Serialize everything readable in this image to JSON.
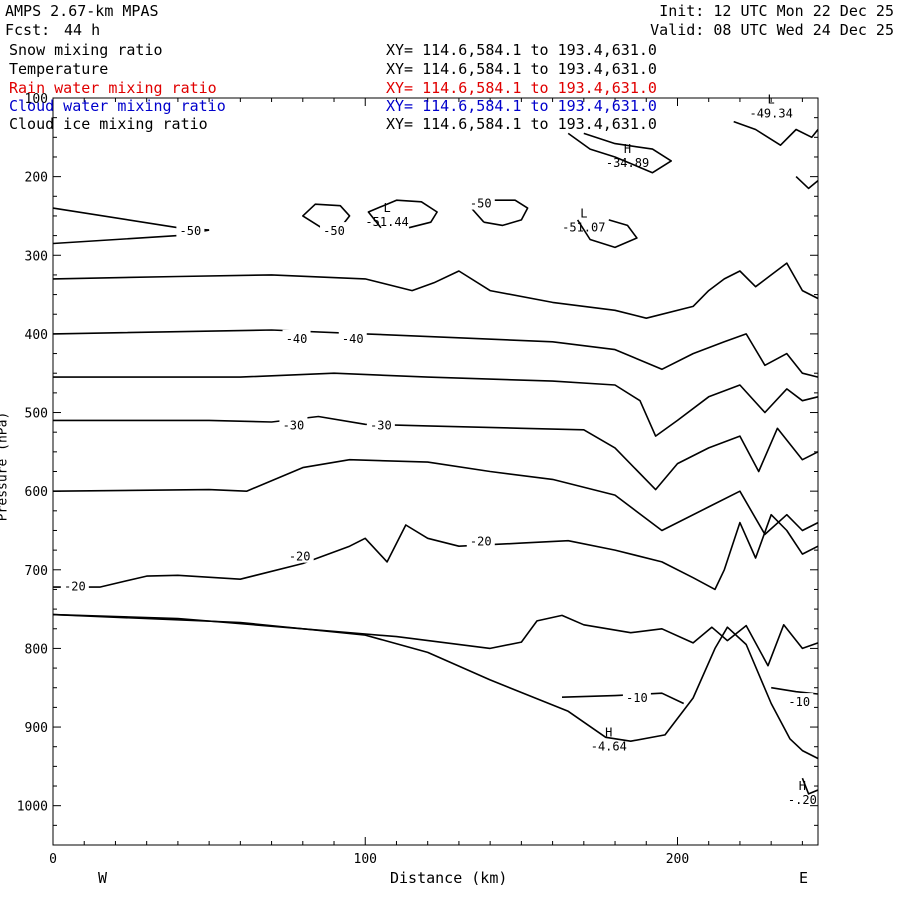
{
  "header": {
    "model": "AMPS 2.67-km MPAS",
    "fcst_label": "Fcst:",
    "fcst_value": "44 h",
    "init": "Init: 12 UTC Mon 22 Dec 25",
    "valid": "Valid: 08 UTC Wed 24 Dec 25"
  },
  "fields": [
    {
      "name": "Snow mixing ratio",
      "xy": "XY= 114.6,584.1 to 193.4,631.0",
      "color": "#000000"
    },
    {
      "name": "Temperature",
      "xy": "XY= 114.6,584.1 to 193.4,631.0",
      "color": "#000000"
    },
    {
      "name": "Rain water mixing ratio",
      "xy": "XY= 114.6,584.1 to 193.4,631.0",
      "color": "#e00000"
    },
    {
      "name": "Cloud water mixing ratio",
      "xy": "XY= 114.6,584.1 to 193.4,631.0",
      "color": "#0000cc"
    },
    {
      "name": "Cloud ice mixing ratio",
      "xy": "XY= 114.6,584.1 to 193.4,631.0",
      "color": "#000000"
    }
  ],
  "chart_data": {
    "type": "line",
    "title": "AMPS 2.67-km MPAS",
    "xlabel": "Distance (km)",
    "ylabel": "Pressure (hPa)",
    "x_end_labels": {
      "left": "W",
      "right": "E"
    },
    "xlim": [
      0,
      245
    ],
    "ylim": [
      1050,
      100
    ],
    "y_reversed": true,
    "xticks": [
      0,
      100,
      200
    ],
    "yticks": [
      100,
      200,
      300,
      400,
      500,
      600,
      700,
      800,
      900,
      1000
    ],
    "line_color": "#000000",
    "series": [
      {
        "points": [
          [
            0,
            240
          ],
          [
            40,
            265
          ],
          [
            50,
            268
          ]
        ]
      },
      {
        "points": [
          [
            0,
            285
          ],
          [
            40,
            275
          ],
          [
            50,
            268
          ]
        ]
      },
      {
        "points": [
          [
            0,
            330
          ],
          [
            40,
            327
          ],
          [
            70,
            325
          ],
          [
            100,
            330
          ],
          [
            115,
            345
          ],
          [
            122,
            335
          ],
          [
            130,
            320
          ],
          [
            140,
            345
          ],
          [
            160,
            360
          ],
          [
            180,
            370
          ],
          [
            190,
            380
          ],
          [
            205,
            365
          ],
          [
            210,
            345
          ],
          [
            215,
            330
          ],
          [
            220,
            320
          ],
          [
            225,
            340
          ],
          [
            230,
            325
          ],
          [
            235,
            310
          ],
          [
            240,
            345
          ],
          [
            245,
            355
          ]
        ]
      },
      {
        "points": [
          [
            0,
            400
          ],
          [
            70,
            395
          ],
          [
            100,
            400
          ],
          [
            130,
            405
          ],
          [
            160,
            410
          ],
          [
            180,
            420
          ],
          [
            195,
            445
          ],
          [
            205,
            425
          ],
          [
            215,
            410
          ],
          [
            222,
            400
          ],
          [
            228,
            440
          ],
          [
            235,
            425
          ],
          [
            240,
            450
          ],
          [
            245,
            455
          ]
        ]
      },
      {
        "points": [
          [
            0,
            455
          ],
          [
            60,
            455
          ],
          [
            90,
            450
          ],
          [
            120,
            455
          ],
          [
            160,
            460
          ],
          [
            180,
            465
          ],
          [
            188,
            485
          ],
          [
            193,
            530
          ],
          [
            200,
            510
          ],
          [
            210,
            480
          ],
          [
            220,
            465
          ],
          [
            228,
            500
          ],
          [
            235,
            470
          ],
          [
            240,
            485
          ],
          [
            245,
            480
          ]
        ]
      },
      {
        "points": [
          [
            0,
            510
          ],
          [
            50,
            510
          ],
          [
            70,
            512
          ],
          [
            85,
            505
          ],
          [
            100,
            515
          ],
          [
            120,
            517
          ],
          [
            150,
            520
          ],
          [
            170,
            522
          ],
          [
            180,
            545
          ],
          [
            193,
            598
          ],
          [
            200,
            565
          ],
          [
            210,
            545
          ],
          [
            220,
            530
          ],
          [
            226,
            575
          ],
          [
            232,
            520
          ],
          [
            240,
            560
          ],
          [
            245,
            550
          ]
        ]
      },
      {
        "points": [
          [
            0,
            600
          ],
          [
            50,
            598
          ],
          [
            62,
            600
          ],
          [
            80,
            570
          ],
          [
            95,
            560
          ],
          [
            120,
            563
          ],
          [
            140,
            575
          ],
          [
            160,
            585
          ],
          [
            180,
            605
          ],
          [
            195,
            650
          ],
          [
            210,
            620
          ],
          [
            220,
            600
          ],
          [
            228,
            655
          ],
          [
            235,
            630
          ],
          [
            240,
            650
          ],
          [
            245,
            640
          ]
        ]
      },
      {
        "points": [
          [
            0,
            722
          ],
          [
            15,
            722
          ],
          [
            30,
            708
          ],
          [
            40,
            707
          ],
          [
            60,
            712
          ],
          [
            80,
            692
          ],
          [
            95,
            670
          ],
          [
            100,
            660
          ],
          [
            107,
            690
          ],
          [
            113,
            643
          ],
          [
            120,
            660
          ],
          [
            130,
            670
          ],
          [
            150,
            666
          ],
          [
            165,
            663
          ],
          [
            180,
            675
          ],
          [
            195,
            690
          ],
          [
            205,
            710
          ],
          [
            212,
            725
          ],
          [
            215,
            700
          ],
          [
            220,
            640
          ],
          [
            225,
            685
          ],
          [
            230,
            630
          ],
          [
            235,
            650
          ],
          [
            240,
            680
          ],
          [
            245,
            670
          ]
        ]
      },
      {
        "points": [
          [
            0,
            757
          ],
          [
            40,
            762
          ],
          [
            80,
            775
          ],
          [
            110,
            785
          ],
          [
            140,
            800
          ],
          [
            150,
            792
          ],
          [
            155,
            765
          ],
          [
            163,
            758
          ],
          [
            170,
            770
          ],
          [
            185,
            780
          ],
          [
            195,
            775
          ],
          [
            205,
            793
          ],
          [
            211,
            773
          ],
          [
            216,
            790
          ],
          [
            222,
            771
          ],
          [
            229,
            822
          ],
          [
            234,
            770
          ],
          [
            240,
            800
          ],
          [
            245,
            793
          ]
        ]
      },
      {
        "points": [
          [
            0,
            757
          ],
          [
            60,
            767
          ],
          [
            100,
            783
          ],
          [
            120,
            805
          ],
          [
            140,
            840
          ],
          [
            165,
            880
          ],
          [
            177,
            913
          ],
          [
            185,
            918
          ],
          [
            196,
            910
          ],
          [
            205,
            863
          ],
          [
            212,
            800
          ],
          [
            216,
            773
          ],
          [
            222,
            795
          ],
          [
            230,
            870
          ],
          [
            236,
            915
          ],
          [
            240,
            930
          ],
          [
            245,
            940
          ]
        ]
      },
      {
        "points": [
          [
            163,
            862
          ],
          [
            180,
            860
          ],
          [
            195,
            857
          ],
          [
            202,
            870
          ]
        ]
      },
      {
        "points": [
          [
            230,
            850
          ],
          [
            238,
            855
          ],
          [
            245,
            858
          ]
        ]
      },
      {
        "points": [
          [
            240,
            965
          ],
          [
            242,
            985
          ],
          [
            245,
            980
          ]
        ]
      },
      {
        "points": [
          [
            86,
            265
          ],
          [
            80,
            250
          ],
          [
            84,
            235
          ],
          [
            92,
            237
          ],
          [
            95,
            250
          ],
          [
            92,
            265
          ]
        ]
      },
      {
        "points": [
          [
            105,
            265
          ],
          [
            101,
            245
          ],
          [
            110,
            230
          ],
          [
            118,
            232
          ],
          [
            123,
            245
          ],
          [
            121,
            258
          ],
          [
            114,
            265
          ]
        ]
      },
      {
        "points": [
          [
            138,
            258
          ],
          [
            134,
            240
          ],
          [
            140,
            230
          ],
          [
            148,
            230
          ],
          [
            152,
            240
          ],
          [
            150,
            255
          ],
          [
            144,
            262
          ],
          [
            138,
            258
          ]
        ]
      },
      {
        "points": [
          [
            168,
            255
          ],
          [
            172,
            280
          ],
          [
            180,
            290
          ],
          [
            187,
            278
          ],
          [
            184,
            262
          ],
          [
            178,
            255
          ]
        ]
      },
      {
        "points": [
          [
            165,
            145
          ],
          [
            172,
            165
          ],
          [
            180,
            175
          ],
          [
            192,
            195
          ],
          [
            198,
            180
          ],
          [
            192,
            165
          ],
          [
            180,
            158
          ],
          [
            170,
            145
          ]
        ]
      },
      {
        "points": [
          [
            218,
            130
          ],
          [
            225,
            140
          ],
          [
            233,
            160
          ],
          [
            238,
            140
          ],
          [
            243,
            150
          ],
          [
            245,
            140
          ]
        ]
      },
      {
        "points": [
          [
            238,
            200
          ],
          [
            242,
            215
          ],
          [
            245,
            205
          ]
        ]
      }
    ],
    "contour_labels": [
      {
        "x": 44,
        "y": 268,
        "text": "-50"
      },
      {
        "x": 90,
        "y": 268,
        "text": "-50"
      },
      {
        "x": 137,
        "y": 233,
        "text": "-50"
      },
      {
        "x": 78,
        "y": 405,
        "text": "-40"
      },
      {
        "x": 96,
        "y": 405,
        "text": "-40"
      },
      {
        "x": 77,
        "y": 515,
        "text": "-30"
      },
      {
        "x": 105,
        "y": 515,
        "text": "-30"
      },
      {
        "x": 79,
        "y": 682,
        "text": "-20"
      },
      {
        "x": 137,
        "y": 663,
        "text": "-20"
      },
      {
        "x": 7,
        "y": 720,
        "text": "-20"
      },
      {
        "x": 187,
        "y": 862,
        "text": "-10"
      },
      {
        "x": 239,
        "y": 867,
        "text": "-10"
      }
    ],
    "extrema": [
      {
        "x": 107,
        "y": 245,
        "marker": "L",
        "value": "-51.44"
      },
      {
        "x": 170,
        "y": 252,
        "marker": "L",
        "value": "-51.07"
      },
      {
        "x": 184,
        "y": 170,
        "marker": "H",
        "value": "-34.89"
      },
      {
        "x": 230,
        "y": 107,
        "marker": "L",
        "value": "-49.34"
      },
      {
        "x": 178,
        "y": 912,
        "marker": "H",
        "value": "-4.64"
      },
      {
        "x": 240,
        "y": 980,
        "marker": "H",
        "value": "-.20"
      }
    ]
  }
}
